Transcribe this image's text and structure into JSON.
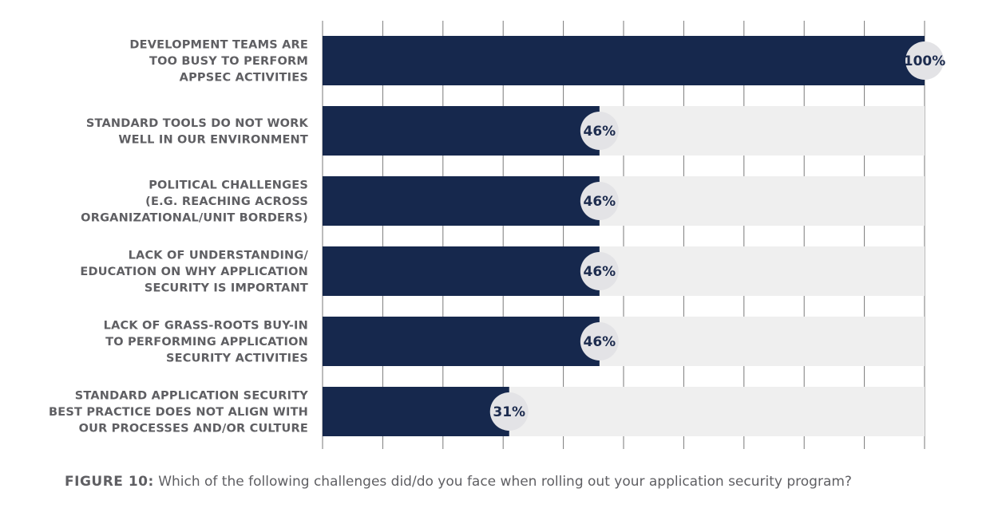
{
  "chart_data": {
    "type": "bar",
    "orientation": "horizontal",
    "categories": [
      [
        "DEVELOPMENT TEAMS ARE",
        "TOO BUSY TO PERFORM",
        "APPSEC ACTIVITIES"
      ],
      [
        "STANDARD TOOLS DO NOT WORK",
        "WELL IN OUR ENVIRONMENT"
      ],
      [
        "POLITICAL CHALLENGES",
        "(E.G. REACHING ACROSS",
        "ORGANIZATIONAL/UNIT BORDERS)"
      ],
      [
        "LACK OF UNDERSTANDING/",
        "EDUCATION ON WHY APPLICATION",
        "SECURITY IS IMPORTANT"
      ],
      [
        "LACK OF GRASS-ROOTS BUY-IN",
        "TO PERFORMING APPLICATION",
        "SECURITY ACTIVITIES"
      ],
      [
        "STANDARD APPLICATION SECURITY",
        "BEST PRACTICE DOES NOT ALIGN WITH",
        "OUR PROCESSES AND/OR CULTURE"
      ]
    ],
    "values": [
      100,
      46,
      46,
      46,
      46,
      31
    ],
    "value_labels": [
      "100%",
      "46%",
      "46%",
      "46%",
      "46%",
      "31%"
    ],
    "xlim": [
      0,
      100
    ],
    "grid": true,
    "colors": {
      "bar": "#16284d",
      "track": "#efefef",
      "badge": "#e3e3e6",
      "grid": "#7a7a7a",
      "label": "#5f5f63"
    }
  },
  "caption": {
    "figure_label": "FIGURE 10:",
    "text": "Which of the following challenges did/do you face when rolling out your application security program?"
  }
}
